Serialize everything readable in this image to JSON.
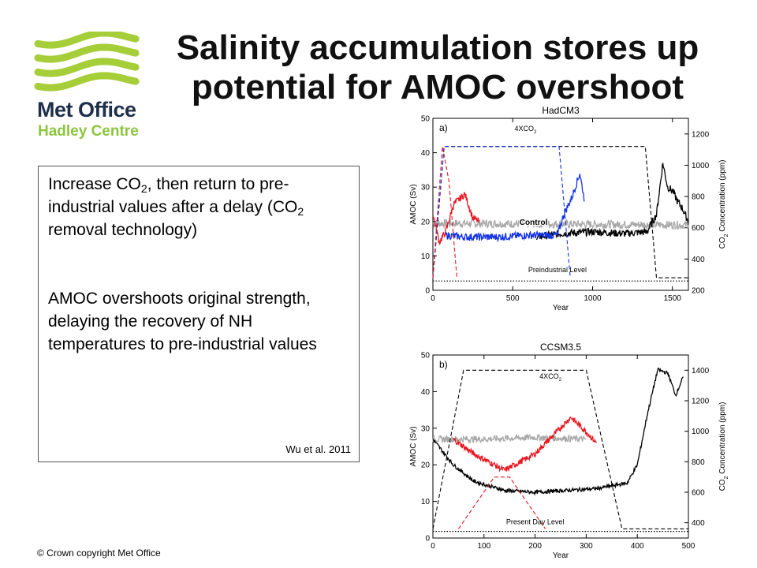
{
  "logo": {
    "name_line1": "Met Office",
    "name_line2": "Hadley Centre",
    "wave_color": "#a6ce39"
  },
  "title": "Salinity accumulation stores up potential for AMOC overshoot",
  "textbox": {
    "p1_a": "Increase CO",
    "p1_sub": "2",
    "p1_b": ", then return to pre-industrial values after a delay (CO",
    "p1_sub2": "2",
    "p1_c": " removal technology)",
    "p2": "AMOC overshoots original strength, delaying the recovery of NH temperatures to pre-industrial values",
    "citation": "Wu et al. 2011"
  },
  "copyright": "© Crown  copyright   Met Office",
  "chart_data": [
    {
      "type": "line",
      "title": "HadCM3",
      "panel_label": "a)",
      "xlabel": "Year",
      "ylabel": "AMOC (Sv)",
      "y2label_a": "CO",
      "y2label_sub": "2",
      "y2label_b": " Concentration (ppm)",
      "xlim": [
        0,
        1600
      ],
      "ylim": [
        0,
        50
      ],
      "y2lim": [
        200,
        1300
      ],
      "xticks": [
        0,
        500,
        1000,
        1500
      ],
      "yticks": [
        0,
        10,
        20,
        30,
        40,
        50
      ],
      "y2ticks": [
        200,
        400,
        600,
        800,
        1000,
        1200
      ],
      "annotations": {
        "co2_label_a": "4XCO",
        "co2_label_sub": "2",
        "control": "Control",
        "baseline": "Preindustrial Level"
      },
      "colors": {
        "black": "#000000",
        "gray": "#a8a8a8",
        "red": "#e8141e",
        "blue": "#1433e6"
      },
      "series": [
        {
          "color": "gray",
          "style": "solid",
          "x": [
            0,
            1600
          ],
          "y": [
            19.5,
            19
          ],
          "noise": 1.2
        },
        {
          "color": "black",
          "style": "solid",
          "x": [
            650,
            800,
            1000,
            1200,
            1340,
            1400,
            1440,
            1470,
            1500,
            1530,
            1560,
            1600
          ],
          "y": [
            15.5,
            16.5,
            17,
            16.5,
            17,
            22,
            37,
            30,
            29,
            26,
            24,
            20
          ],
          "noise": 1.1
        },
        {
          "color": "red",
          "style": "solid",
          "x": [
            0,
            40,
            80,
            130,
            200,
            250,
            290
          ],
          "y": [
            22,
            14,
            17,
            25,
            28,
            21,
            20
          ],
          "noise": 1.0
        },
        {
          "color": "blue",
          "style": "solid",
          "x": [
            80,
            200,
            400,
            600,
            780,
            820,
            870,
            920,
            950
          ],
          "y": [
            16,
            15.5,
            15.5,
            16,
            16,
            22,
            27,
            34,
            26
          ],
          "noise": 1.1
        },
        {
          "color": "black",
          "style": "dashed",
          "axis": "y2",
          "x": [
            0,
            70,
            1330,
            1400,
            1600
          ],
          "y": [
            280,
            1120,
            1120,
            280,
            280
          ]
        },
        {
          "color": "blue",
          "style": "dashed",
          "axis": "y2",
          "x": [
            0,
            70,
            790,
            860
          ],
          "y": [
            280,
            1120,
            1120,
            280
          ]
        },
        {
          "color": "red",
          "style": "dashed",
          "axis": "y2",
          "x": [
            0,
            60,
            100,
            150
          ],
          "y": [
            280,
            1120,
            900,
            280
          ]
        },
        {
          "color": "black",
          "style": "dotted",
          "x": [
            0,
            1600
          ],
          "y": [
            2.7,
            2.7
          ]
        }
      ]
    },
    {
      "type": "line",
      "title": "CCSM3.5",
      "panel_label": "b)",
      "xlabel": "Year",
      "ylabel": "AMOC (Sv)",
      "y2label_a": "CO",
      "y2label_sub": "2",
      "y2label_b": " Concentration (ppm)",
      "xlim": [
        0,
        500
      ],
      "ylim": [
        0,
        50
      ],
      "y2lim": [
        300,
        1500
      ],
      "xticks": [
        0,
        100,
        200,
        300,
        400,
        500
      ],
      "yticks": [
        0,
        10,
        20,
        30,
        40,
        50
      ],
      "y2ticks": [
        400,
        600,
        800,
        1000,
        1200,
        1400
      ],
      "annotations": {
        "co2_label_a": "4XCO",
        "co2_label_sub": "2",
        "baseline": "Present Day Level"
      },
      "colors": {
        "black": "#000000",
        "gray": "#a8a8a8",
        "red": "#e8141e"
      },
      "series": [
        {
          "color": "gray",
          "style": "solid",
          "x": [
            0,
            100,
            200,
            300
          ],
          "y": [
            27,
            27,
            27.5,
            27
          ],
          "noise": 0.9
        },
        {
          "color": "red",
          "style": "solid",
          "x": [
            40,
            80,
            140,
            200,
            270,
            300,
            320
          ],
          "y": [
            27,
            23,
            18.5,
            23,
            33,
            29,
            26
          ],
          "noise": 0.8
        },
        {
          "color": "black",
          "style": "solid",
          "x": [
            0,
            40,
            80,
            140,
            200,
            260,
            320,
            380,
            400,
            420,
            440,
            460,
            475,
            490
          ],
          "y": [
            27,
            20,
            15.5,
            13,
            12.5,
            13,
            13.5,
            15,
            20,
            34,
            46,
            45,
            39,
            44
          ],
          "noise": 0.5
        },
        {
          "color": "black",
          "style": "dashed",
          "axis": "y2",
          "x": [
            0,
            60,
            300,
            370,
            500
          ],
          "y": [
            360,
            1400,
            1400,
            360,
            360
          ]
        },
        {
          "color": "red",
          "style": "dashed",
          "axis": "y2",
          "x": [
            50,
            120,
            150,
            220
          ],
          "y": [
            360,
            700,
            700,
            360
          ]
        },
        {
          "color": "black",
          "style": "dotted",
          "x": [
            0,
            500
          ],
          "y": [
            1.8,
            1.8
          ]
        }
      ]
    }
  ]
}
